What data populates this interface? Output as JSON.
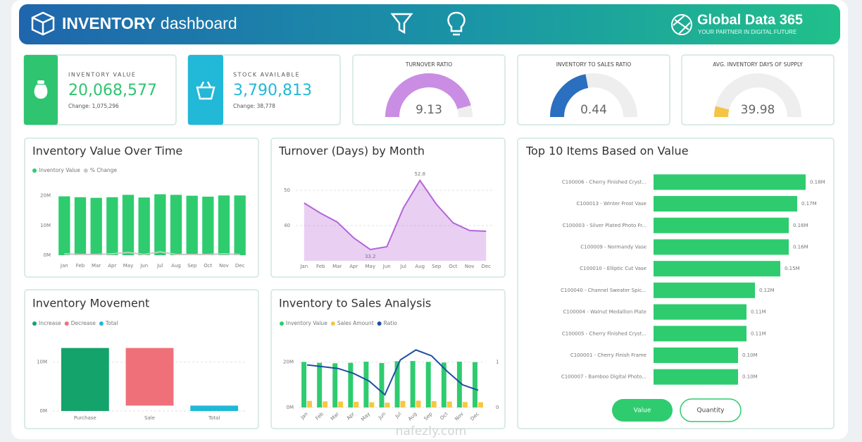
{
  "header": {
    "title_bold": "INVENTORY",
    "title_rest": "dashboard",
    "brand": "Global Data 365",
    "tagline": "YOUR PARTNER IN DIGITAL FUTURE"
  },
  "kpis": [
    {
      "label": "INVENTORY VALUE",
      "value": "20,068,577",
      "change": "Change: 1,075,296",
      "color": "#2fc46f"
    },
    {
      "label": "STOCK AVAILABLE",
      "value": "3,790,813",
      "change": "Change: 38,778",
      "color": "#22b8d8"
    }
  ],
  "chart_data": [
    {
      "type": "gauge",
      "title": "TURNOVER RATIO",
      "value": 9.13,
      "ylim": [
        0,
        10
      ],
      "color": "#c98ee3"
    },
    {
      "type": "gauge",
      "title": "INVENTORY TO SALES RATIO",
      "value": 0.44,
      "ylim": [
        0,
        1
      ],
      "color": "#2a6fc0"
    },
    {
      "type": "gauge",
      "title": "AVG. INVENTORY DAYS OF SUPPLY",
      "value": 39.98,
      "ylim": [
        0,
        500
      ],
      "color": "#f5c445"
    },
    {
      "type": "bar",
      "title": "Inventory Value Over Time",
      "categories": [
        "Jan",
        "Feb",
        "Mar",
        "Apr",
        "May",
        "Jun",
        "Jul",
        "Aug",
        "Sep",
        "Oct",
        "Nov",
        "Dec"
      ],
      "series": [
        {
          "name": "Inventory Value",
          "color": "#2ecc6f",
          "values": [
            19800000,
            19500000,
            19300000,
            19500000,
            20300000,
            19400000,
            20500000,
            20300000,
            20000000,
            19700000,
            20100000,
            20100000
          ]
        },
        {
          "name": "% Change",
          "color": "#c9c9c9",
          "type": "line",
          "axis": "y2",
          "values": [
            2,
            1,
            1,
            2,
            4,
            1,
            5,
            1,
            1,
            1,
            2,
            1
          ]
        }
      ],
      "ylim": [
        0,
        23000000
      ],
      "yticks": [
        {
          "value": 0,
          "label": "0M"
        },
        {
          "value": 10000000,
          "label": "10M"
        },
        {
          "value": 20000000,
          "label": "20M"
        }
      ],
      "y2lim": [
        0,
        100
      ],
      "grid": false
    },
    {
      "type": "area",
      "title": "Turnover (Days) by Month",
      "categories": [
        "Jan",
        "Feb",
        "Mar",
        "Apr",
        "May",
        "Jun",
        "Jul",
        "Aug",
        "Sep",
        "Oct",
        "Nov",
        "Dec"
      ],
      "values": [
        46.4,
        43.5,
        41,
        36.5,
        33.2,
        34,
        45,
        52.8,
        46,
        40.8,
        38.6,
        38.4
      ],
      "color": "#b565d8",
      "ylim": [
        30,
        55
      ],
      "yticks": [
        40,
        50
      ],
      "grid": true
    },
    {
      "type": "waterfall",
      "title": "Inventory Movement",
      "categories": [
        "Purchase",
        "Sale",
        "Total"
      ],
      "values": [
        12900000,
        -11800000,
        1100000
      ],
      "legend": [
        "Increase",
        "Decrease",
        "Total"
      ],
      "colors": [
        "#14a36b",
        "#f0707a",
        "#1fb8d8"
      ],
      "ylim": [
        0,
        14000000
      ],
      "yticks": [
        {
          "value": 0,
          "label": "0M"
        },
        {
          "value": 10000000,
          "label": "10M"
        }
      ],
      "grid": true
    },
    {
      "type": "bar",
      "title": "Inventory to Sales Analysis",
      "categories": [
        "Jan",
        "Feb",
        "Mar",
        "Apr",
        "May",
        "Jun",
        "Jul",
        "Aug",
        "Sep",
        "Oct",
        "Nov",
        "Dec"
      ],
      "series": [
        {
          "name": "Inventory Value",
          "color": "#2ecc6f",
          "values": [
            20100000,
            19700000,
            19500000,
            19700000,
            20200000,
            19600000,
            20400000,
            20500000,
            20100000,
            19800000,
            20200000,
            20000000
          ]
        },
        {
          "name": "Sales Amount",
          "color": "#f5c842",
          "values": [
            2900000,
            2700000,
            2600000,
            2500000,
            2300000,
            2100000,
            2900000,
            3000000,
            2800000,
            2600000,
            2400000,
            2300000
          ]
        },
        {
          "name": "Ratio",
          "color": "#1f4fa0",
          "type": "line",
          "axis": "y2",
          "values": [
            0.94,
            0.9,
            0.86,
            0.75,
            0.58,
            0.28,
            1.05,
            1.27,
            1.14,
            0.8,
            0.5,
            0.38
          ]
        }
      ],
      "ylim": [
        0,
        28000000
      ],
      "yticks": [
        {
          "value": 0,
          "label": "0M"
        },
        {
          "value": 20000000,
          "label": "20M"
        }
      ],
      "y2lim": [
        0,
        1.4
      ],
      "y2ticks": [
        0,
        1
      ],
      "grid": true
    },
    {
      "type": "hbar",
      "title": "Top 10 Items Based on Value",
      "categories": [
        "C100006 - Cherry Finished Cryst...",
        "C100013 - Winter Frost Vase",
        "C100003 - Silver Plated Photo Fr...",
        "C100009 - Normandy Vase",
        "C100010 - Elliptic Cut Vase",
        "C100040 - Channel Sweater Spic...",
        "C100004 - Walnut Medallion Plate",
        "C100005 - Cherry Finished Cryst...",
        "C100001 - Cherry Finish Frame",
        "C100007 - Bamboo Digital Photo..."
      ],
      "values": [
        0.18,
        0.17,
        0.16,
        0.16,
        0.15,
        0.12,
        0.11,
        0.11,
        0.1,
        0.1
      ],
      "value_labels": [
        "0.18M",
        "0.17M",
        "0.16M",
        "0.16M",
        "0.15M",
        "0.12M",
        "0.11M",
        "0.11M",
        "0.10M",
        "0.10M"
      ],
      "xlim": [
        0,
        0.2
      ],
      "color": "#2ecc6f"
    }
  ],
  "buttons": [
    "Value",
    "Quantity"
  ],
  "watermark": "nafezly.com"
}
